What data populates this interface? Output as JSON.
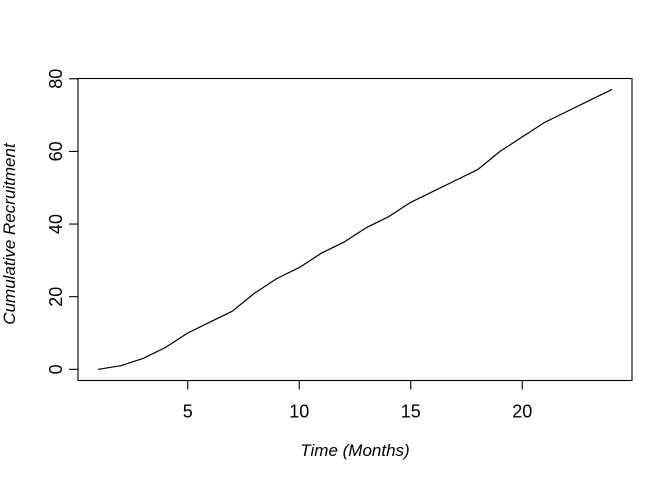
{
  "chart_data": {
    "type": "line",
    "title": "",
    "xlabel": "Time (Months)",
    "ylabel": "Cumulative Recruitment",
    "series": [
      {
        "name": "cumulative-recruitment",
        "x": [
          1,
          2,
          3,
          4,
          5,
          6,
          7,
          8,
          9,
          10,
          11,
          12,
          13,
          14,
          15,
          16,
          17,
          18,
          19,
          20,
          21,
          22,
          23,
          24
        ],
        "values": [
          0,
          1,
          3,
          6,
          10,
          13,
          16,
          21,
          25,
          28,
          32,
          35,
          39,
          42,
          46,
          49,
          52,
          55,
          60,
          64,
          68,
          71,
          74,
          77
        ]
      }
    ],
    "x_ticks": [
      5,
      10,
      15,
      20
    ],
    "y_ticks": [
      0,
      20,
      40,
      60,
      80
    ],
    "xlim": [
      0.08,
      24.92
    ],
    "ylim": [
      -3.08,
      80.08
    ],
    "grid": false,
    "legend": "none",
    "frame": "box",
    "line_color": "#000000",
    "axis_color": "#000000",
    "background_color": "#ffffff"
  }
}
